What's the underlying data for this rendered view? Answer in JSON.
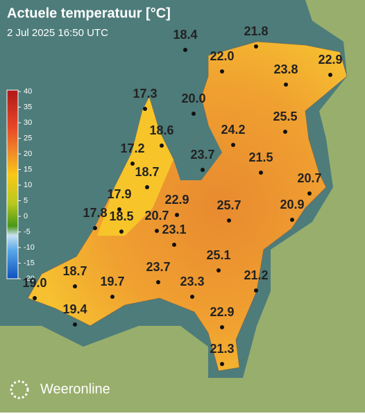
{
  "header": {
    "title": "Actuele temperatuur [°C]",
    "subtitle": "2 Jul 2025 16:50 UTC"
  },
  "legend": {
    "ticks": [
      40,
      35,
      30,
      25,
      20,
      15,
      10,
      5,
      0,
      -5,
      -10,
      -15,
      -20
    ]
  },
  "stations": [
    "18.4",
    "21.8",
    "22.0",
    "22.9",
    "23.8",
    "17.3",
    "20.0",
    "25.5",
    "24.2",
    "18.6",
    "17.2",
    "23.7",
    "21.5",
    "18.7",
    "20.7",
    "17.9",
    "22.9",
    "25.7",
    "20.9",
    "17.8",
    "18.5",
    "20.7",
    "23.1",
    "25.1",
    "23.7",
    "18.7",
    "21.2",
    "19.7",
    "19.0",
    "23.3",
    "19.4",
    "22.9",
    "21.3"
  ],
  "brand": "Weeronline"
}
